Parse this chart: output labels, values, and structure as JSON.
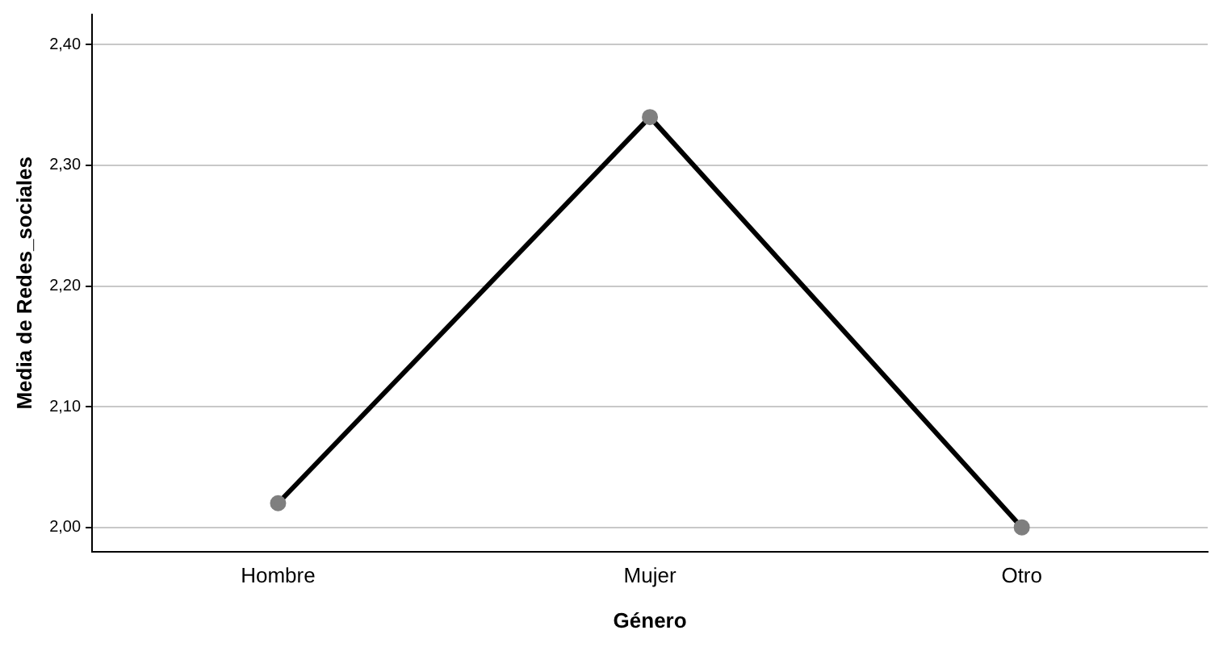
{
  "chart_data": {
    "type": "line",
    "xlabel": "Género",
    "ylabel": "Media de Redes_sociales",
    "categories": [
      "Hombre",
      "Mujer",
      "Otro"
    ],
    "series": [
      {
        "color": "#000000",
        "values": [
          2.02,
          2.34,
          2.0
        ]
      }
    ],
    "ylim": [
      1.98,
      2.425
    ],
    "yticks": [
      {
        "value": 2.0,
        "label": "2,00"
      },
      {
        "value": 2.1,
        "label": "2,10"
      },
      {
        "value": 2.2,
        "label": "2,20"
      },
      {
        "value": 2.3,
        "label": "2,30"
      },
      {
        "value": 2.4,
        "label": "2,40"
      }
    ],
    "grid": "y",
    "legend": false,
    "marker": "circle",
    "line_style": "solid"
  }
}
